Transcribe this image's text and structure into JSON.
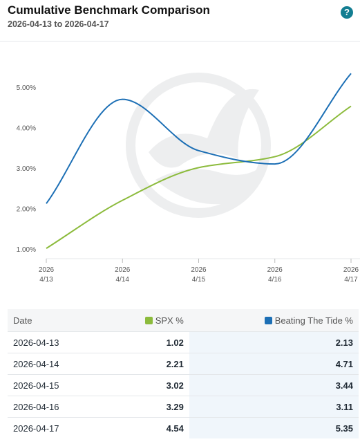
{
  "header": {
    "title": "Cumulative Benchmark Comparison",
    "subtitle": "2026-04-13 to 2026-04-17",
    "help_icon": "?"
  },
  "colors": {
    "spx": "#8cbb3c",
    "btt": "#1c6fb5",
    "grid": "#e4e7ea"
  },
  "chart_data": {
    "type": "line",
    "title": "",
    "xlabel": "",
    "ylabel": "",
    "x": [
      "2026-04-13",
      "2026-04-14",
      "2026-04-15",
      "2026-04-16",
      "2026-04-17"
    ],
    "x_tick_labels": [
      {
        "year": "2026",
        "day": "4/13"
      },
      {
        "year": "2026",
        "day": "4/14"
      },
      {
        "year": "2026",
        "day": "4/15"
      },
      {
        "year": "2026",
        "day": "4/16"
      },
      {
        "year": "2026",
        "day": "4/17"
      }
    ],
    "y_ticks": [
      "1.00%",
      "2.00%",
      "3.00%",
      "4.00%",
      "5.00%"
    ],
    "ylim": [
      0.8,
      5.8
    ],
    "grid": false,
    "series": [
      {
        "name": "SPX %",
        "values": [
          1.02,
          2.21,
          3.02,
          3.29,
          4.54
        ]
      },
      {
        "name": "Beating The Tide %",
        "values": [
          2.13,
          4.71,
          3.44,
          3.11,
          5.35
        ]
      }
    ]
  },
  "table": {
    "headers": {
      "date": "Date",
      "spx": "SPX %",
      "btt": "Beating The Tide %"
    },
    "rows": [
      {
        "date": "2026-04-13",
        "spx": "1.02",
        "btt": "2.13"
      },
      {
        "date": "2026-04-14",
        "spx": "2.21",
        "btt": "4.71"
      },
      {
        "date": "2026-04-15",
        "spx": "3.02",
        "btt": "3.44"
      },
      {
        "date": "2026-04-16",
        "spx": "3.29",
        "btt": "3.11"
      },
      {
        "date": "2026-04-17",
        "spx": "4.54",
        "btt": "5.35"
      }
    ]
  }
}
